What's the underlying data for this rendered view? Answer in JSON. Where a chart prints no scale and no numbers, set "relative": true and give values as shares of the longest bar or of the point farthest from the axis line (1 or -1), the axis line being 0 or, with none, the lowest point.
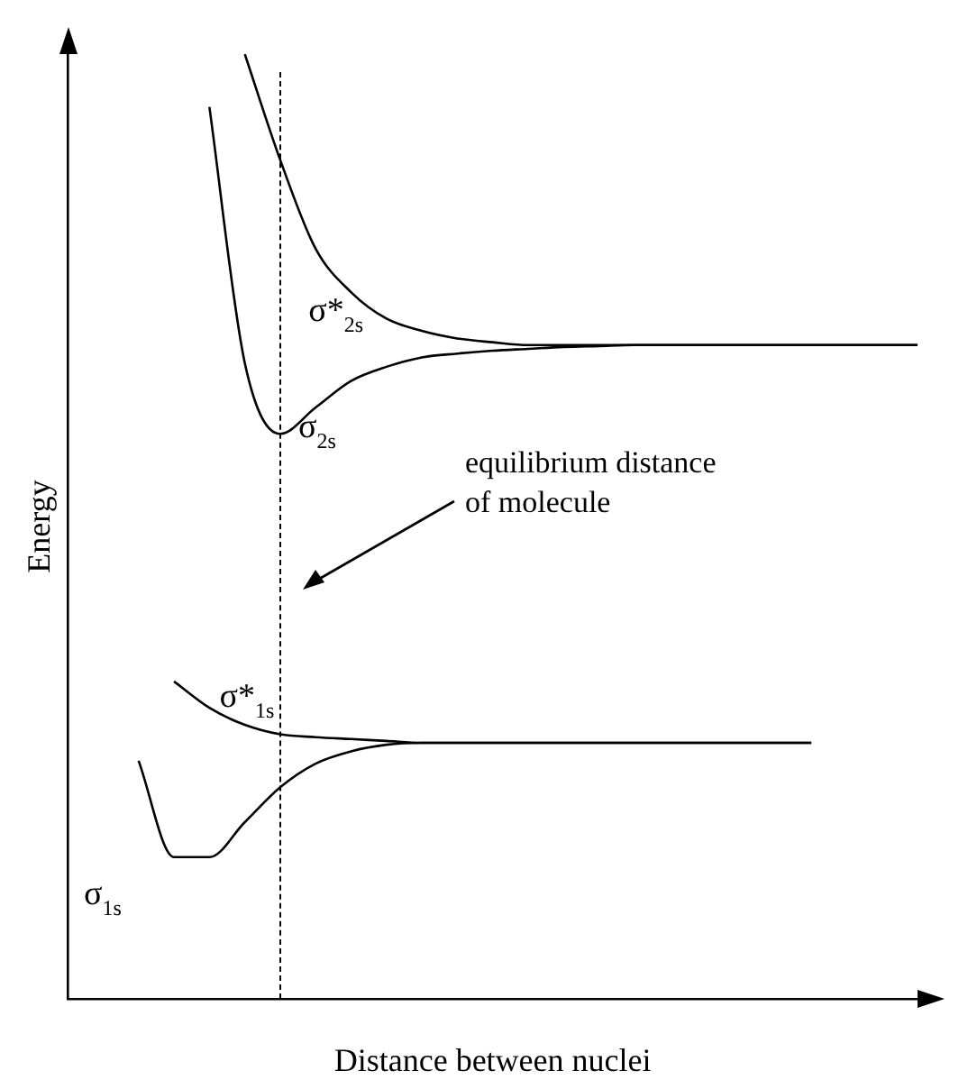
{
  "chart_data": {
    "type": "line",
    "relative": true,
    "xlabel": "Distance between nuclei",
    "ylabel": "Energy",
    "categories": [
      null,
      null,
      null,
      null,
      null,
      null,
      null,
      null,
      null,
      null,
      null,
      null,
      null,
      null,
      null,
      null,
      null,
      null,
      null,
      null,
      null,
      null,
      null,
      null,
      null
    ],
    "series": [
      {
        "name": "σ*$_{2s}$",
        "color": "#000000",
        "values": [
          null,
          null,
          null,
          null,
          null,
          1,
          0.888,
          0.794,
          0.748,
          0.72,
          0.707,
          0.699,
          0.695,
          0.692,
          0.692,
          0.692,
          0.692,
          0.692,
          0.692,
          0.692,
          0.692,
          0.692,
          0.692,
          0.692,
          0.692
        ]
      },
      {
        "name": "σ$_{2s}$",
        "color": "#000000",
        "values": [
          null,
          null,
          null,
          null,
          0.944,
          0.673,
          0.598,
          0.626,
          0.654,
          0.669,
          0.679,
          0.683,
          0.686,
          0.688,
          0.69,
          0.691,
          0.692,
          0.692,
          0.692,
          0.692,
          0.692,
          0.692,
          0.692,
          0.692,
          0.692
        ]
      },
      {
        "name": "σ*$_{1s}$",
        "color": "#000000",
        "values": [
          null,
          null,
          null,
          0.336,
          0.308,
          0.29,
          0.28,
          0.277,
          0.275,
          0.273,
          0.271,
          0.271,
          0.271,
          0.271,
          0.271,
          0.271,
          0.271,
          0.271,
          0.271,
          0.271,
          0.271,
          0.271,
          null,
          null,
          null
        ]
      },
      {
        "name": "σ$_{1s}$",
        "color": "#000000",
        "values": [
          null,
          null,
          0.252,
          0.15,
          0.15,
          0.187,
          0.224,
          0.249,
          0.262,
          0.269,
          0.271,
          0.271,
          0.271,
          0.271,
          0.271,
          0.271,
          0.271,
          0.271,
          0.271,
          0.271,
          0.271,
          0.271,
          null,
          null,
          null
        ]
      }
    ],
    "annotations": [
      "equilibrium distance of molecule"
    ],
    "grid": false,
    "legend": false,
    "marker": "none",
    "line_style": "solid"
  }
}
